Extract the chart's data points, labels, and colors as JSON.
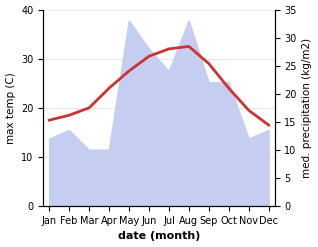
{
  "months": [
    "Jan",
    "Feb",
    "Mar",
    "Apr",
    "May",
    "Jun",
    "Jul",
    "Aug",
    "Sep",
    "Oct",
    "Nov",
    "Dec"
  ],
  "max_temp": [
    17.5,
    18.5,
    20.0,
    24.0,
    27.5,
    30.5,
    32.0,
    32.5,
    29.0,
    24.0,
    19.5,
    16.5
  ],
  "precipitation": [
    12.0,
    13.5,
    10.0,
    10.0,
    33.0,
    28.0,
    24.0,
    33.0,
    22.0,
    22.0,
    12.0,
    13.5
  ],
  "temp_color": "#cc3333",
  "precip_fill_color": "#c5cdf0",
  "background_color": "#ffffff",
  "xlabel": "date (month)",
  "ylabel_left": "max temp (C)",
  "ylabel_right": "med. precipitation (kg/m2)",
  "ylim_left": [
    0,
    40
  ],
  "ylim_right": [
    0,
    35
  ],
  "yticks_left": [
    0,
    10,
    20,
    30,
    40
  ],
  "yticks_right": [
    0,
    5,
    10,
    15,
    20,
    25,
    30,
    35
  ],
  "temp_linewidth": 2.0,
  "xlabel_fontsize": 8,
  "ylabel_fontsize": 7.5,
  "tick_fontsize": 7
}
